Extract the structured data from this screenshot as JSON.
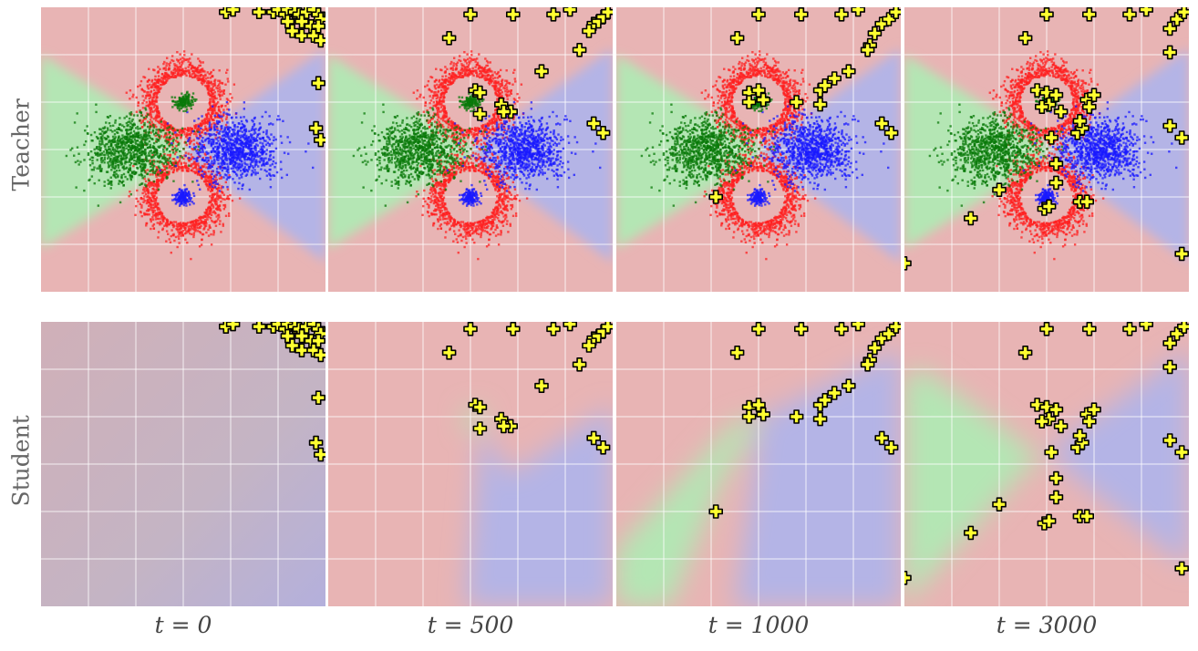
{
  "figure": {
    "row_labels": [
      "Teacher",
      "Student"
    ],
    "col_labels": [
      "t = 0",
      "t = 500",
      "t = 1000",
      "t = 3000"
    ]
  },
  "colors": {
    "region_red": "#e8b4b4",
    "region_green": "#b4e6b4",
    "region_blue": "#b4b4e6",
    "region_mixed": "#c8b4c0",
    "class_red": "#ff2020",
    "class_green": "#0a7a0a",
    "class_blue": "#1a1aff",
    "query_marker": "#ffff30",
    "grid": "#ffffff"
  },
  "chart_data": {
    "type": "scatter",
    "description_of_panels": "2 rows (Teacher, Student) x 4 columns (time steps)",
    "xlim": [
      -3,
      3
    ],
    "ylim": [
      -3,
      3
    ],
    "grid": true,
    "teacher_clusters": [
      {
        "class": "red",
        "shape": "ring",
        "center": [
          0,
          1
        ],
        "radius": 0.5,
        "points": 900
      },
      {
        "class": "red",
        "shape": "ring",
        "center": [
          0,
          -1
        ],
        "radius": 0.5,
        "points": 900
      },
      {
        "class": "green",
        "shape": "blob",
        "center": [
          -1.1,
          0
        ],
        "spread": 0.4,
        "points": 900
      },
      {
        "class": "blue",
        "shape": "blob",
        "center": [
          1.1,
          0
        ],
        "spread": 0.4,
        "points": 900
      },
      {
        "class": "green",
        "shape": "blob",
        "center": [
          0,
          1
        ],
        "spread": 0.1,
        "points": 150
      },
      {
        "class": "blue",
        "shape": "blob",
        "center": [
          0,
          -1
        ],
        "spread": 0.1,
        "points": 150
      }
    ],
    "panels": [
      {
        "t": "t = 0",
        "query_points": [
          [
            0.9,
            2.9
          ],
          [
            1.05,
            2.95
          ],
          [
            1.6,
            2.9
          ],
          [
            1.9,
            2.9
          ],
          [
            2.0,
            2.95
          ],
          [
            2.15,
            2.85
          ],
          [
            2.2,
            2.95
          ],
          [
            2.35,
            2.9
          ],
          [
            2.45,
            2.85
          ],
          [
            2.6,
            2.9
          ],
          [
            2.75,
            2.95
          ],
          [
            2.85,
            2.85
          ],
          [
            2.9,
            2.75
          ],
          [
            2.2,
            2.7
          ],
          [
            2.5,
            2.7
          ],
          [
            2.7,
            2.6
          ],
          [
            2.85,
            2.6
          ],
          [
            2.3,
            2.5
          ],
          [
            2.5,
            2.4
          ],
          [
            2.75,
            2.4
          ],
          [
            2.9,
            2.3
          ],
          [
            2.85,
            1.4
          ],
          [
            2.8,
            0.45
          ],
          [
            2.9,
            0.2
          ]
        ]
      },
      {
        "t": "t = 500",
        "query_points": [
          [
            -0.45,
            2.35
          ],
          [
            0,
            2.85
          ],
          [
            0.9,
            2.85
          ],
          [
            1.75,
            2.85
          ],
          [
            2.1,
            2.95
          ],
          [
            2.6,
            2.65
          ],
          [
            2.7,
            2.7
          ],
          [
            2.8,
            2.8
          ],
          [
            2.9,
            2.9
          ],
          [
            2.5,
            2.5
          ],
          [
            2.3,
            2.1
          ],
          [
            1.5,
            1.65
          ],
          [
            0.1,
            1.25
          ],
          [
            0.2,
            1.2
          ],
          [
            0.65,
            0.95
          ],
          [
            0.85,
            0.8
          ],
          [
            0.7,
            0.8
          ],
          [
            0.2,
            0.75
          ],
          [
            2.6,
            0.55
          ],
          [
            2.8,
            0.35
          ]
        ]
      },
      {
        "t": "t = 1000",
        "query_points": [
          [
            0,
            2.85
          ],
          [
            0.9,
            2.85
          ],
          [
            1.75,
            2.85
          ],
          [
            2.1,
            2.95
          ],
          [
            2.6,
            2.65
          ],
          [
            2.75,
            2.75
          ],
          [
            2.9,
            2.9
          ],
          [
            2.45,
            2.45
          ],
          [
            2.35,
            2.2
          ],
          [
            2.3,
            2.1
          ],
          [
            1.9,
            1.65
          ],
          [
            1.6,
            1.5
          ],
          [
            1.3,
            1.25
          ],
          [
            1.4,
            1.35
          ],
          [
            -0.45,
            2.35
          ],
          [
            -0.2,
            1.2
          ],
          [
            0,
            1.25
          ],
          [
            -0.2,
            1.0
          ],
          [
            0.1,
            1.05
          ],
          [
            0.8,
            1.0
          ],
          [
            1.3,
            0.95
          ],
          [
            2.6,
            0.55
          ],
          [
            2.8,
            0.35
          ],
          [
            -0.9,
            -1.0
          ]
        ]
      },
      {
        "t": "t = 3000",
        "query_points": [
          [
            0,
            2.85
          ],
          [
            0.9,
            2.85
          ],
          [
            1.75,
            2.85
          ],
          [
            2.1,
            2.95
          ],
          [
            -0.45,
            2.35
          ],
          [
            2.6,
            2.55
          ],
          [
            2.75,
            2.75
          ],
          [
            2.9,
            2.9
          ],
          [
            2.6,
            2.05
          ],
          [
            -0.2,
            1.25
          ],
          [
            0,
            1.2
          ],
          [
            0.2,
            1.15
          ],
          [
            0.85,
            1.05
          ],
          [
            1.0,
            1.15
          ],
          [
            0.9,
            0.9
          ],
          [
            0.05,
            0.95
          ],
          [
            -0.1,
            0.9
          ],
          [
            0.3,
            0.8
          ],
          [
            0.1,
            0.25
          ],
          [
            0.65,
            0.35
          ],
          [
            0.75,
            0.45
          ],
          [
            0.7,
            0.6
          ],
          [
            2.6,
            0.5
          ],
          [
            2.85,
            0.25
          ],
          [
            0.2,
            -0.3
          ],
          [
            0.2,
            -0.7
          ],
          [
            -1.0,
            -0.85
          ],
          [
            0.7,
            -1.1
          ],
          [
            0.85,
            -1.1
          ],
          [
            -0.05,
            -1.25
          ],
          [
            0.05,
            -1.2
          ],
          [
            -1.6,
            -1.45
          ],
          [
            -3.0,
            -2.4
          ],
          [
            2.85,
            -2.2
          ]
        ]
      }
    ]
  }
}
